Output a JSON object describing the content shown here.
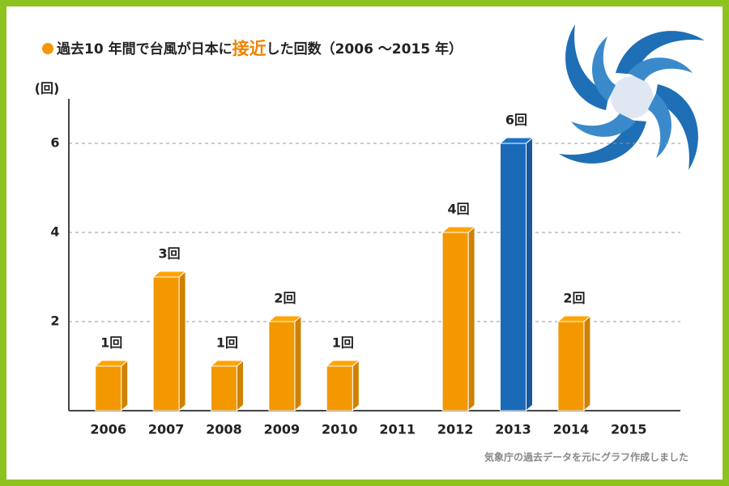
{
  "chart_data": {
    "type": "bar",
    "title": [
      "過去10 年間で台風が日本に",
      "接近",
      "した回数（2006 〜2015 年）"
    ],
    "y_label": "(回)",
    "categories": [
      "2006",
      "2007",
      "2008",
      "2009",
      "2010",
      "2011",
      "2012",
      "2013",
      "2014",
      "2015"
    ],
    "values": [
      1,
      3,
      1,
      2,
      1,
      0,
      4,
      6,
      2,
      0
    ],
    "value_labels": [
      "1回",
      "3回",
      "1回",
      "2回",
      "1回",
      null,
      "4回",
      "6回",
      "2回",
      null
    ],
    "colors": [
      "#f39800",
      "#f39800",
      "#f39800",
      "#f39800",
      "#f39800",
      "#f39800",
      "#f39800",
      "#1a6ab8",
      "#f39800",
      "#f39800"
    ],
    "ylim": [
      0,
      7
    ],
    "yticks": [
      2,
      4,
      6
    ],
    "grid": true,
    "source": "気象庁の過去データを元にグラフ作成しました"
  }
}
